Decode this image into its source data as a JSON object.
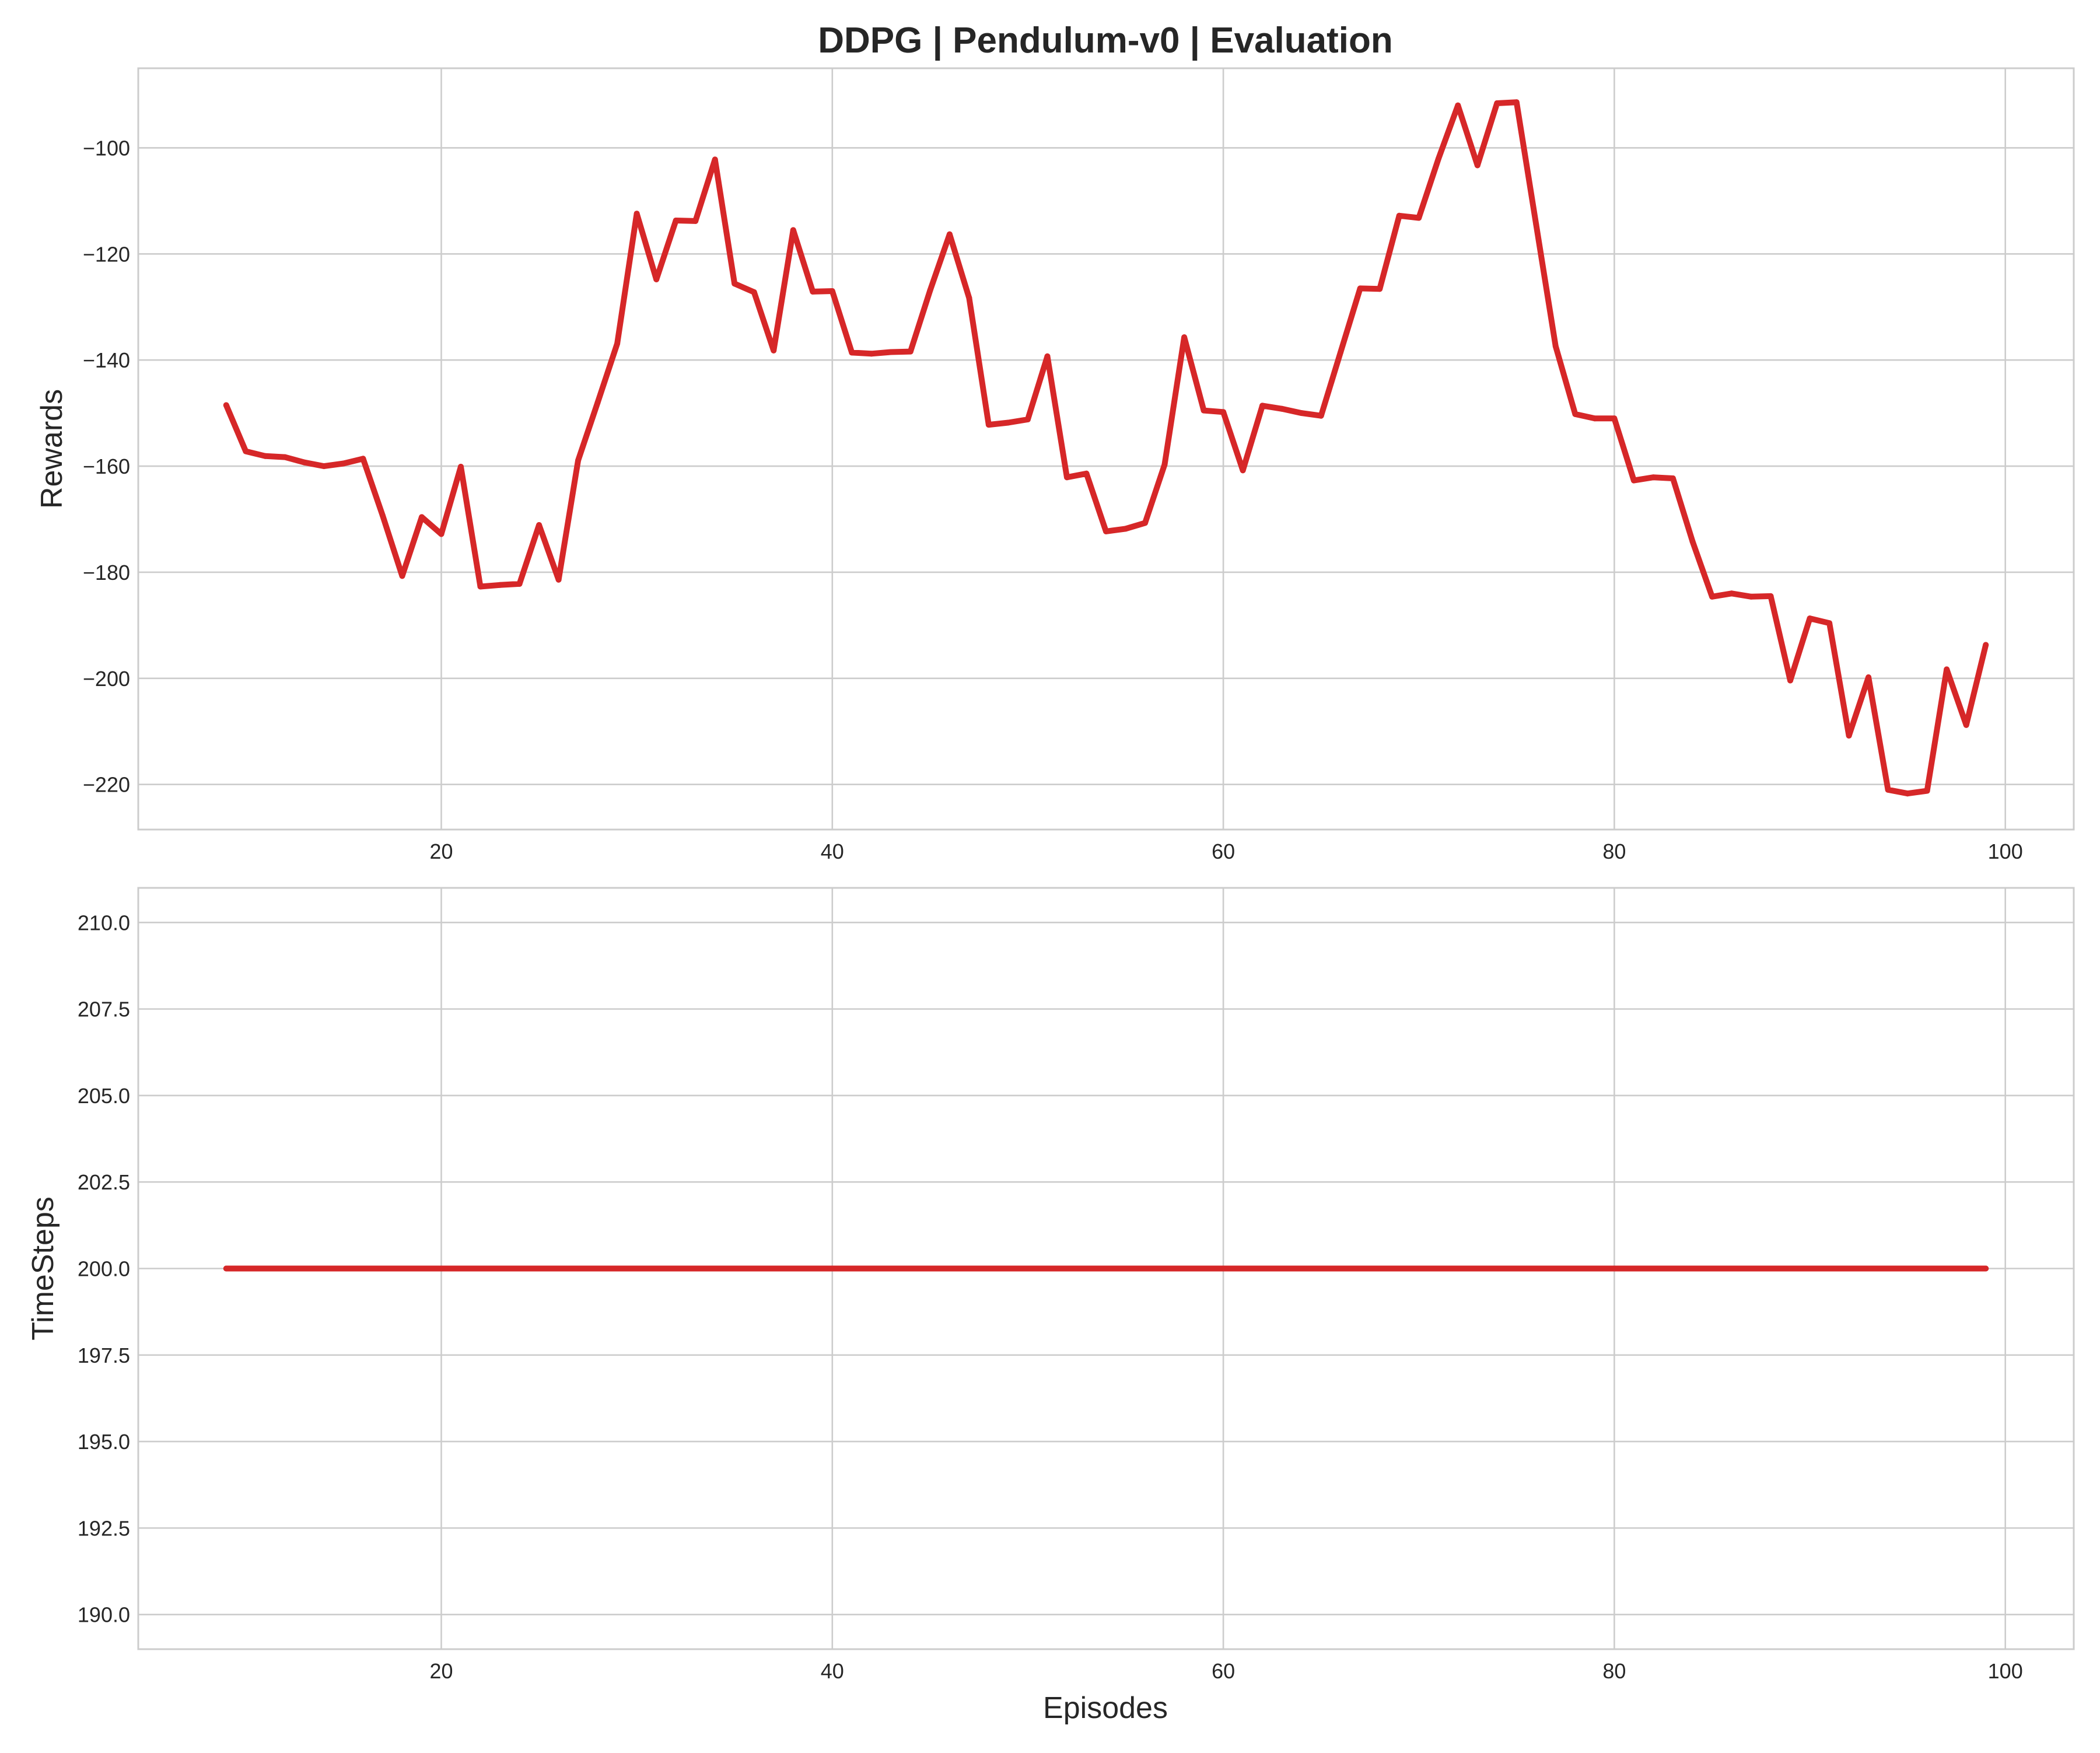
{
  "figure": {
    "title": "DDPG | Pendulum-v0 | Evaluation",
    "xlabel": "Episodes"
  },
  "colors": {
    "series": "#d62728"
  },
  "chart_data": [
    {
      "type": "line",
      "ylabel": "Rewards",
      "xlim": [
        4.5,
        103.5
      ],
      "ylim": [
        -228.5,
        -85
      ],
      "xticks": [
        20,
        40,
        60,
        80,
        100
      ],
      "yticks": [
        -220,
        -200,
        -180,
        -160,
        -140,
        -120,
        -100
      ],
      "ytick_labels": [
        "−220",
        "−200",
        "−180",
        "−160",
        "−140",
        "−120",
        "−100"
      ],
      "grid": true,
      "x": [
        9,
        10,
        11,
        12,
        13,
        14,
        15,
        16,
        17,
        18,
        19,
        20,
        21,
        22,
        23,
        24,
        25,
        26,
        27,
        28,
        29,
        30,
        31,
        32,
        33,
        34,
        35,
        36,
        37,
        38,
        39,
        40,
        41,
        42,
        43,
        44,
        45,
        46,
        47,
        48,
        49,
        50,
        51,
        52,
        53,
        54,
        55,
        56,
        57,
        58,
        59,
        60,
        61,
        62,
        63,
        64,
        65,
        66,
        67,
        68,
        69,
        70,
        71,
        72,
        73,
        74,
        75,
        76,
        77,
        78,
        79,
        80,
        81,
        82,
        83,
        84,
        85,
        86,
        87,
        88,
        89,
        90,
        91,
        92,
        93,
        94,
        95,
        96,
        97,
        98,
        99
      ],
      "values": [
        -148.5,
        -157.2,
        -158.1,
        -158.3,
        -159.3,
        -160.0,
        -159.5,
        -158.6,
        -169.3,
        -180.7,
        -169.6,
        -172.8,
        -160.1,
        -182.7,
        -182.4,
        -182.2,
        -171.1,
        -181.4,
        -158.9,
        -148.0,
        -136.9,
        -112.4,
        -124.8,
        -113.7,
        -113.8,
        -102.2,
        -125.6,
        -127.2,
        -138.2,
        -115.5,
        -127.1,
        -127.0,
        -138.6,
        -138.8,
        -138.5,
        -138.4,
        -126.9,
        -116.3,
        -128.3,
        -152.2,
        -151.8,
        -151.2,
        -139.3,
        -162.1,
        -161.4,
        -172.3,
        -171.8,
        -170.7,
        -159.7,
        -135.7,
        -149.5,
        -149.8,
        -160.8,
        -148.6,
        -149.2,
        -150.0,
        -150.5,
        -138.5,
        -126.5,
        -126.6,
        -112.8,
        -113.2,
        -102.1,
        -92.0,
        -103.3,
        -91.6,
        -91.4,
        -114.4,
        -137.4,
        -150.2,
        -151.0,
        -151.0,
        -162.7,
        -162.1,
        -162.3,
        -174.2,
        -184.6,
        -184.0,
        -184.6,
        -184.5,
        -200.4,
        -188.7,
        -189.6,
        -210.8,
        -199.8,
        -221.0,
        -221.7,
        -221.2,
        -198.3,
        -208.8,
        -193.7
      ],
      "series": [
        {
          "values_ref": "values"
        }
      ]
    },
    {
      "type": "line",
      "ylabel": "TimeSteps",
      "xlim": [
        4.5,
        103.5
      ],
      "ylim": [
        189,
        211
      ],
      "xticks": [
        20,
        40,
        60,
        80,
        100
      ],
      "yticks": [
        190.0,
        192.5,
        195.0,
        197.5,
        200.0,
        202.5,
        205.0,
        207.5,
        210.0
      ],
      "ytick_labels": [
        "190.0",
        "192.5",
        "195.0",
        "197.5",
        "200.0",
        "202.5",
        "205.0",
        "207.5",
        "210.0"
      ],
      "grid": true,
      "x": [
        9,
        99
      ],
      "values": [
        200,
        200
      ]
    }
  ]
}
